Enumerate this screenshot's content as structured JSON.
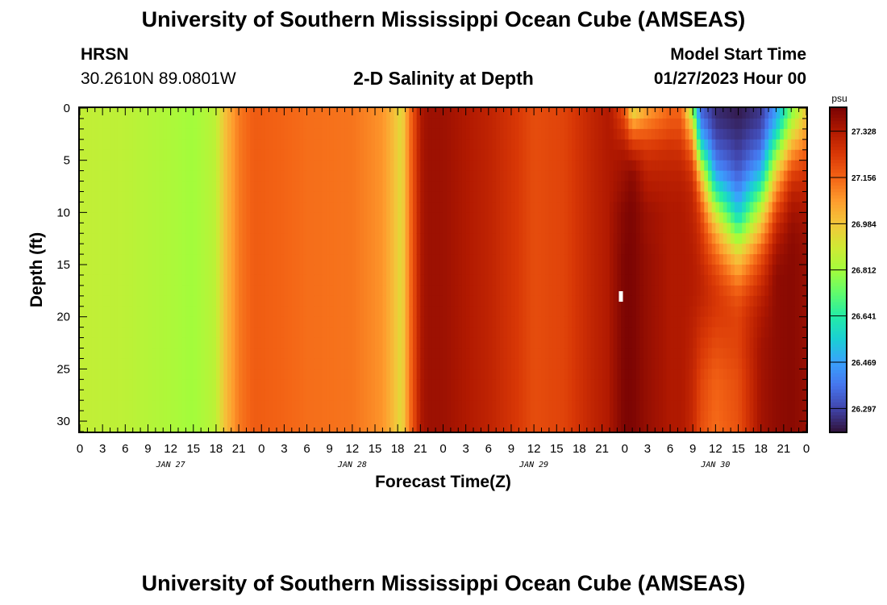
{
  "page": {
    "title": "University of Southern Mississippi Ocean Cube (AMSEAS)",
    "station": "HRSN",
    "coords": "30.2610N  89.0801W",
    "subtitle": "2-D Salinity at Depth",
    "model_start_label": "Model Start Time",
    "model_start_value": "01/27/2023 Hour 00",
    "footer_title": "University of Southern Mississippi Ocean Cube (AMSEAS)"
  },
  "chart_data": {
    "type": "heatmap",
    "xlabel": "Forecast Time(Z)",
    "ylabel": "Depth (ft)",
    "x_unit": "hours from 01/27/2023 00Z",
    "xlim": [
      0,
      96
    ],
    "ylim": [
      0,
      31
    ],
    "y_inverted": true,
    "x_ticks": [
      0,
      3,
      6,
      9,
      12,
      15,
      18,
      21,
      24,
      27,
      30,
      33,
      36,
      39,
      42,
      45,
      48,
      51,
      54,
      57,
      60,
      63,
      66,
      69,
      72,
      75,
      78,
      81,
      84,
      87,
      90,
      93,
      96
    ],
    "x_tick_labels": [
      "0",
      "3",
      "6",
      "9",
      "12",
      "15",
      "18",
      "21",
      "0",
      "3",
      "6",
      "9",
      "12",
      "15",
      "18",
      "21",
      "0",
      "3",
      "6",
      "9",
      "12",
      "15",
      "18",
      "21",
      "0",
      "3",
      "6",
      "9",
      "12",
      "15",
      "18",
      "21",
      "0"
    ],
    "day_labels": [
      {
        "hour": 12,
        "label": "JAN 27"
      },
      {
        "hour": 36,
        "label": "JAN 28"
      },
      {
        "hour": 60,
        "label": "JAN 29"
      },
      {
        "hour": 84,
        "label": "JAN 30"
      }
    ],
    "y_ticks": [
      0,
      5,
      10,
      15,
      20,
      25,
      30
    ],
    "y_tick_labels": [
      "0",
      "5",
      "10",
      "15",
      "20",
      "25",
      "30"
    ],
    "colorbar": {
      "unit": "psu",
      "min": 26.211,
      "max": 27.414,
      "tick_values": [
        26.297,
        26.469,
        26.641,
        26.812,
        26.984,
        27.156,
        27.328
      ],
      "tick_labels": [
        "26.297",
        "26.469",
        "26.641",
        "26.812",
        "26.984",
        "27.156",
        "27.328"
      ]
    },
    "surface_time_series": {
      "hours": [
        0,
        6,
        12,
        15,
        18,
        19,
        21,
        23,
        26,
        30,
        36,
        40,
        41.5,
        42.5,
        43.5,
        44.5,
        45,
        46,
        48,
        54,
        58,
        60,
        64,
        66,
        68,
        70
      ],
      "salinity": [
        26.87,
        26.86,
        26.83,
        26.81,
        26.86,
        26.98,
        27.12,
        27.17,
        27.16,
        27.14,
        27.13,
        27.08,
        27.0,
        26.93,
        27.12,
        27.25,
        27.33,
        27.36,
        27.36,
        27.3,
        27.24,
        27.2,
        27.22,
        27.26,
        27.3,
        27.33
      ]
    },
    "column_profiles_after_hour_70": {
      "depths_ft": [
        0,
        2,
        4,
        6,
        8,
        10,
        12,
        14,
        16,
        18,
        20,
        23,
        26,
        31
      ],
      "profiles": [
        {
          "hour": 70,
          "salinity": [
            27.33,
            27.33,
            27.33,
            27.33,
            27.33,
            27.34,
            27.34,
            27.34,
            27.34,
            27.34,
            27.34,
            27.34,
            27.34,
            27.34
          ]
        },
        {
          "hour": 72,
          "salinity": [
            27.18,
            27.25,
            27.33,
            27.36,
            27.38,
            27.4,
            27.4,
            27.41,
            27.41,
            27.41,
            27.41,
            27.41,
            27.41,
            27.41
          ]
        },
        {
          "hour": 73,
          "salinity": [
            26.9,
            27.12,
            27.28,
            27.38,
            27.4,
            27.41,
            27.41,
            27.41,
            27.41,
            27.41,
            27.41,
            27.41,
            27.41,
            27.41
          ]
        },
        {
          "hour": 75,
          "salinity": [
            27.05,
            27.15,
            27.25,
            27.3,
            27.33,
            27.36,
            27.36,
            27.37,
            27.37,
            27.37,
            27.37,
            27.37,
            27.37,
            27.37
          ]
        },
        {
          "hour": 78,
          "salinity": [
            27.15,
            27.2,
            27.27,
            27.3,
            27.32,
            27.33,
            27.33,
            27.33,
            27.33,
            27.33,
            27.33,
            27.33,
            27.33,
            27.33
          ]
        },
        {
          "hour": 79.5,
          "salinity": [
            27.15,
            27.2,
            27.26,
            27.3,
            27.32,
            27.33,
            27.33,
            27.33,
            27.33,
            27.33,
            27.33,
            27.33,
            27.33,
            27.33
          ]
        },
        {
          "hour": 81,
          "salinity": [
            26.75,
            26.98,
            27.14,
            27.24,
            27.29,
            27.3,
            27.31,
            27.32,
            27.32,
            27.32,
            27.31,
            27.3,
            27.29,
            27.28
          ]
        },
        {
          "hour": 82,
          "salinity": [
            26.35,
            26.45,
            26.65,
            26.95,
            27.12,
            27.22,
            27.26,
            27.28,
            27.3,
            27.3,
            27.28,
            27.25,
            27.22,
            27.2
          ]
        },
        {
          "hour": 84,
          "salinity": [
            26.25,
            26.28,
            26.35,
            26.45,
            26.65,
            26.88,
            27.05,
            27.15,
            27.22,
            27.25,
            27.24,
            27.2,
            27.16,
            27.14
          ]
        },
        {
          "hour": 87,
          "salinity": [
            26.22,
            26.25,
            26.28,
            26.33,
            26.42,
            26.55,
            26.75,
            26.95,
            27.08,
            27.18,
            27.22,
            27.22,
            27.2,
            27.19
          ]
        },
        {
          "hour": 90,
          "salinity": [
            26.27,
            26.3,
            26.38,
            26.5,
            26.7,
            26.9,
            27.05,
            27.18,
            27.25,
            27.3,
            27.33,
            27.35,
            27.35,
            27.35
          ]
        },
        {
          "hour": 92,
          "salinity": [
            26.45,
            26.55,
            26.75,
            26.95,
            27.1,
            27.22,
            27.3,
            27.35,
            27.38,
            27.38,
            27.38,
            27.38,
            27.38,
            27.38
          ]
        },
        {
          "hour": 94,
          "salinity": [
            26.75,
            26.88,
            27.05,
            27.2,
            27.3,
            27.35,
            27.38,
            27.39,
            27.39,
            27.39,
            27.39,
            27.39,
            27.39,
            27.39
          ]
        },
        {
          "hour": 96,
          "salinity": [
            26.97,
            27.05,
            27.15,
            27.25,
            27.3,
            27.34,
            27.36,
            27.37,
            27.37,
            27.37,
            27.37,
            27.37,
            27.37,
            27.37
          ]
        }
      ]
    },
    "colors": {
      "colormap": [
        "#30123b",
        "#4145ab",
        "#4675ed",
        "#39a2fc",
        "#1bcfd4",
        "#24eca6",
        "#61fc6c",
        "#a4fc3b",
        "#d1e834",
        "#f3c63a",
        "#fe9b2d",
        "#f36315",
        "#d93806",
        "#b11901",
        "#7a0403"
      ]
    }
  }
}
